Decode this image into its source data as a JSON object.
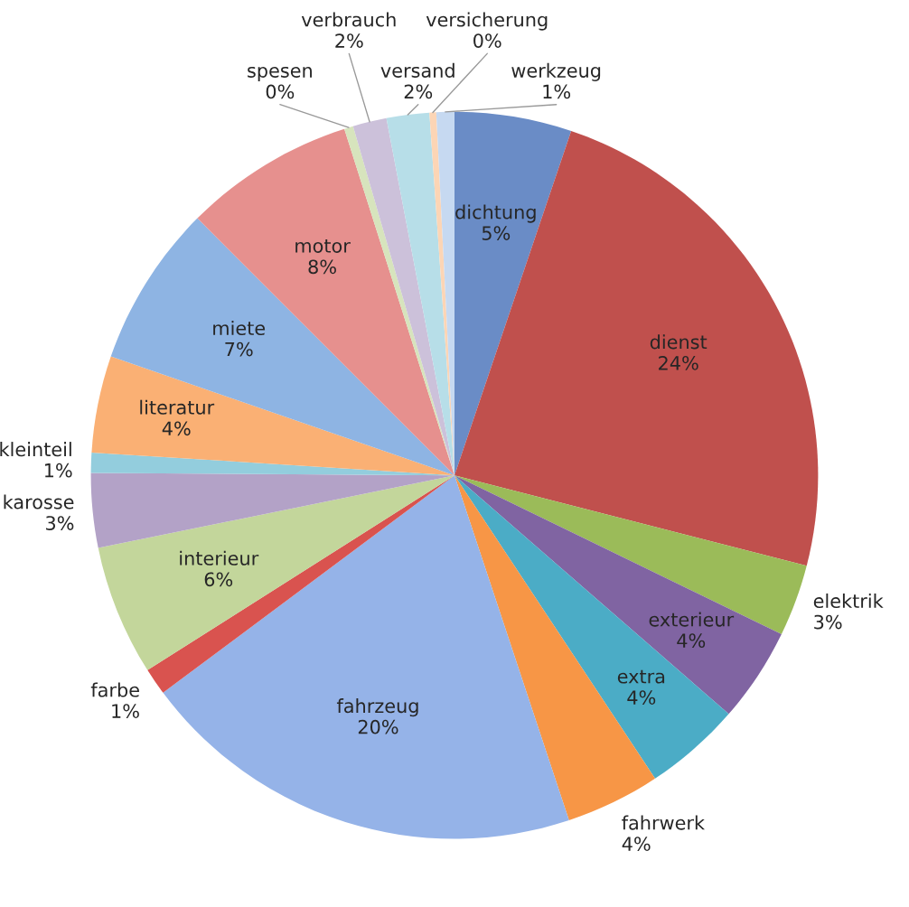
{
  "chart_data": {
    "type": "pie",
    "categories": [
      "dichtung",
      "dienst",
      "elektrik",
      "exterieur",
      "extra",
      "fahrwerk",
      "fahrzeug",
      "farbe",
      "interieur",
      "karosse",
      "kleinteil",
      "literatur",
      "miete",
      "motor",
      "spesen",
      "verbrauch",
      "versand",
      "versicherung",
      "werkzeug"
    ],
    "values": [
      5.2,
      23.8,
      3.2,
      4.2,
      4.3,
      4.2,
      19.9,
      1.2,
      5.8,
      3.3,
      0.9,
      4.3,
      7.2,
      7.6,
      0.4,
      1.5,
      1.9,
      0.3,
      0.8
    ],
    "value_labels": [
      "5%",
      "24%",
      "3%",
      "4%",
      "4%",
      "4%",
      "20%",
      "1%",
      "6%",
      "3%",
      "1%",
      "4%",
      "7%",
      "8%",
      "0%",
      "2%",
      "2%",
      "0%",
      "1%"
    ],
    "colors": [
      "#6a8cc6",
      "#c0504d",
      "#9bbb59",
      "#8064a2",
      "#4bacc6",
      "#f79646",
      "#95b3e8",
      "#d9534f",
      "#c3d69b",
      "#b3a2c7",
      "#93cddd",
      "#fab074",
      "#8eb4e3",
      "#e6908e",
      "#d7e4bd",
      "#ccc1da",
      "#b7dee8",
      "#fcd5b5",
      "#c6d9f1"
    ]
  }
}
